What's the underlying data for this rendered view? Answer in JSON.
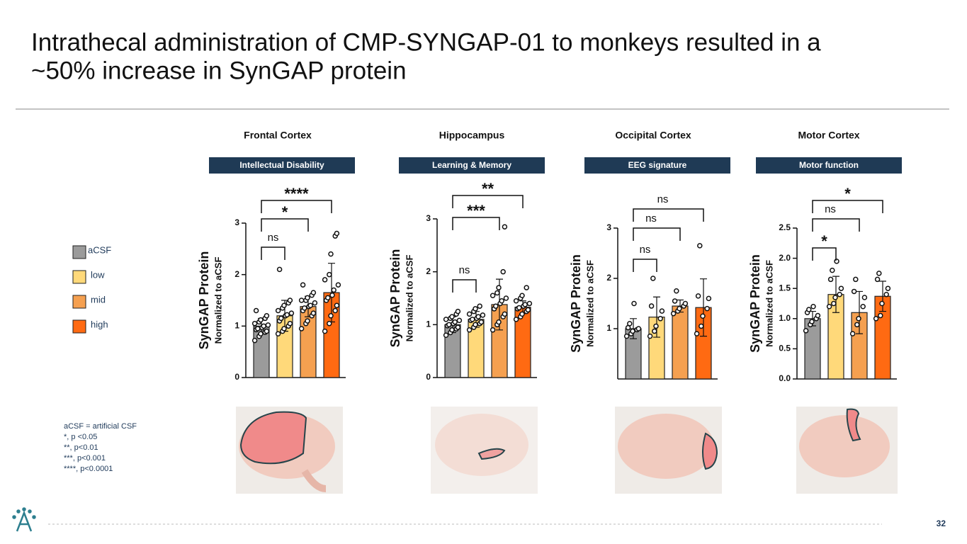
{
  "title_lines": [
    "Intrathecal administration of CMP-SYNGAP-01 to monkeys resulted in a",
    "~50% increase in SynGAP protein"
  ],
  "legend": [
    {
      "name": "aCSF",
      "color": "#9b9b9b"
    },
    {
      "name": "low",
      "color": "#ffd97a"
    },
    {
      "name": "mid",
      "color": "#f5a050"
    },
    {
      "name": "high",
      "color": "#ff6a12"
    }
  ],
  "chart_data": [
    {
      "type": "bar",
      "title": "Frontal Cortex",
      "subtitle": "Intellectual Disability",
      "ylabel": "SynGAP Protein",
      "ylabel2": "Normalized to aCSF",
      "values": [
        1.0,
        1.2,
        1.38,
        1.65
      ],
      "errors": [
        0.15,
        0.3,
        0.2,
        0.57
      ],
      "points": [
        [
          0.72,
          0.8,
          0.85,
          0.88,
          0.9,
          0.93,
          0.95,
          0.97,
          1.0,
          1.02,
          1.05,
          1.08,
          1.12,
          1.15,
          1.2,
          1.3
        ],
        [
          0.85,
          0.9,
          0.95,
          1.0,
          1.05,
          1.1,
          1.15,
          1.2,
          1.22,
          1.25,
          1.3,
          1.35,
          1.4,
          1.45,
          1.5,
          2.1
        ],
        [
          0.95,
          1.05,
          1.1,
          1.2,
          1.25,
          1.3,
          1.35,
          1.38,
          1.4,
          1.45,
          1.5,
          1.5,
          1.55,
          1.6,
          1.65,
          1.8
        ],
        [
          0.9,
          1.05,
          1.2,
          1.3,
          1.4,
          1.5,
          1.55,
          1.6,
          1.7,
          1.8,
          1.9,
          2.0,
          2.4,
          2.75,
          2.8
        ]
      ],
      "significance": [
        "ns",
        "*",
        "****"
      ],
      "ylim": [
        0,
        3
      ],
      "yticks": [
        0,
        1,
        2,
        3
      ]
    },
    {
      "type": "bar",
      "title": "Hippocampus",
      "subtitle": "Learning & Memory",
      "ylabel": "SynGAP Protein",
      "ylabel2": "Normalized to aCSF",
      "values": [
        1.0,
        1.1,
        1.38,
        1.33
      ],
      "errors": [
        0.15,
        0.15,
        0.48,
        0.12
      ],
      "points": [
        [
          0.8,
          0.85,
          0.9,
          0.92,
          0.95,
          0.98,
          1.0,
          1.02,
          1.05,
          1.08,
          1.1,
          1.12,
          1.15,
          1.2,
          1.25
        ],
        [
          0.9,
          0.95,
          1.0,
          1.02,
          1.05,
          1.08,
          1.1,
          1.12,
          1.15,
          1.18,
          1.2,
          1.25,
          1.3,
          1.35
        ],
        [
          0.9,
          1.0,
          1.05,
          1.15,
          1.2,
          1.3,
          1.35,
          1.4,
          1.45,
          1.5,
          1.55,
          1.6,
          1.7,
          2.0,
          2.85
        ],
        [
          1.1,
          1.15,
          1.2,
          1.25,
          1.28,
          1.3,
          1.32,
          1.35,
          1.38,
          1.4,
          1.45,
          1.5,
          1.55,
          1.7
        ]
      ],
      "significance": [
        "ns",
        "***",
        "**"
      ],
      "ylim": [
        0,
        3
      ],
      "yticks": [
        0,
        1,
        2,
        3
      ]
    },
    {
      "type": "bar",
      "title": "Occipital Cortex",
      "subtitle": "EEG signature",
      "ylabel": "SynGAP Protein",
      "ylabel2": "Normalized to aCSF",
      "values": [
        1.0,
        1.23,
        1.45,
        1.42
      ],
      "errors": [
        0.2,
        0.4,
        0.12,
        0.57
      ],
      "points": [
        [
          0.85,
          0.9,
          0.95,
          0.98,
          1.0,
          1.02,
          1.1,
          1.5
        ],
        [
          0.85,
          0.95,
          1.05,
          1.2,
          1.35,
          1.45,
          2.0
        ],
        [
          1.3,
          1.35,
          1.4,
          1.45,
          1.5,
          1.55,
          1.75
        ],
        [
          0.9,
          1.05,
          1.25,
          1.4,
          1.6,
          1.65,
          2.65
        ]
      ],
      "significance": [
        "ns",
        "ns",
        "ns"
      ],
      "ylim": [
        0,
        3
      ],
      "yticks": [
        1,
        2,
        3
      ]
    },
    {
      "type": "bar",
      "title": "Motor Cortex",
      "subtitle": "Motor function",
      "ylabel": "SynGAP Protein",
      "ylabel2": "Normalized to aCSF",
      "values": [
        1.0,
        1.4,
        1.1,
        1.37
      ],
      "errors": [
        0.12,
        0.3,
        0.35,
        0.25
      ],
      "points": [
        [
          0.8,
          0.9,
          0.95,
          1.0,
          1.05,
          1.1,
          1.15,
          1.2
        ],
        [
          1.2,
          1.25,
          1.35,
          1.4,
          1.5,
          1.65,
          1.8,
          1.95
        ],
        [
          0.75,
          0.9,
          1.0,
          1.2,
          1.35,
          1.45,
          1.65
        ],
        [
          1.0,
          1.05,
          1.25,
          1.4,
          1.5,
          1.65,
          1.75
        ]
      ],
      "significance": [
        "*",
        "ns",
        "*"
      ],
      "ylim": [
        0,
        2.5
      ],
      "yticks": [
        {
          "value": 0,
          "label": "0.0"
        },
        {
          "value": 0.5,
          "label": "0.5"
        },
        {
          "value": 1,
          "label": "1.0"
        },
        {
          "value": 1.5,
          "label": "1.5"
        },
        {
          "value": 2,
          "label": "2.0"
        },
        {
          "value": 2.5,
          "label": "2.5"
        }
      ]
    }
  ],
  "footnotes": [
    "aCSF = artificial CSF",
    "*, p <0.05",
    "**, p<0.01",
    "***, p<0.001",
    "****, p<0.0001"
  ],
  "page_number": 32
}
